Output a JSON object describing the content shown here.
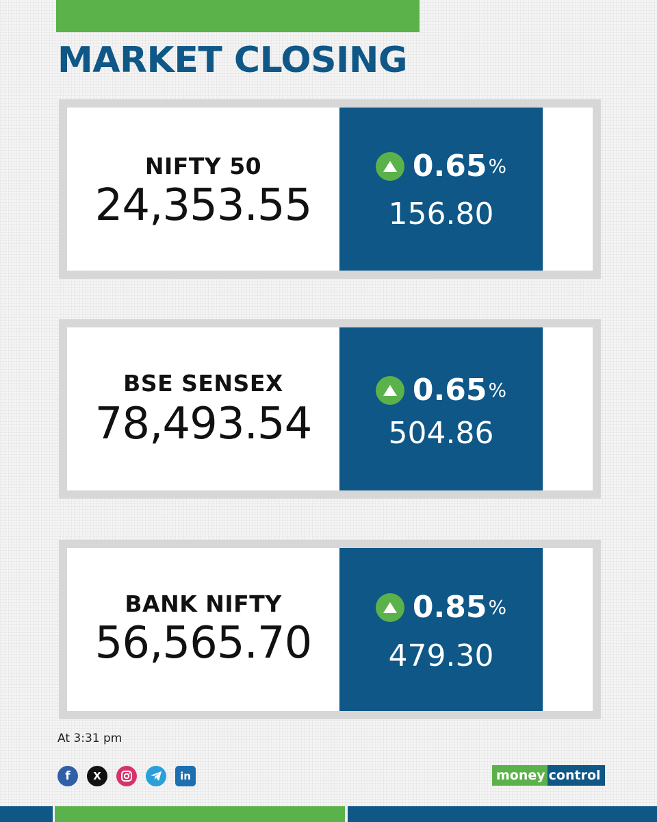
{
  "title": "MARKET CLOSING",
  "colors": {
    "brand_blue": "#0e5787",
    "brand_green": "#5cb24a",
    "card_border": "#d7d7d7"
  },
  "cards": [
    {
      "name": "NIFTY 50",
      "value": "24,353.55",
      "change_pct": "0.65",
      "pct_sign": "%",
      "change_points": "156.80",
      "direction": "up",
      "icon": "up-arrow-icon"
    },
    {
      "name": "BSE SENSEX",
      "value": "78,493.54",
      "change_pct": "0.65",
      "pct_sign": "%",
      "change_points": "504.86",
      "direction": "up",
      "icon": "up-arrow-icon"
    },
    {
      "name": "BANK NIFTY",
      "value": "56,565.70",
      "change_pct": "0.85",
      "pct_sign": "%",
      "change_points": "479.30",
      "direction": "up",
      "icon": "up-arrow-icon"
    }
  ],
  "timestamp": "At 3:31 pm",
  "social": {
    "facebook": {
      "icon": "facebook-icon",
      "glyph": "f"
    },
    "x": {
      "icon": "x-icon",
      "glyph": "X"
    },
    "instagram": {
      "icon": "instagram-icon"
    },
    "telegram": {
      "icon": "telegram-icon"
    },
    "linkedin": {
      "icon": "linkedin-icon",
      "glyph": "in"
    }
  },
  "logo": {
    "part1": "money",
    "part2": "control"
  }
}
